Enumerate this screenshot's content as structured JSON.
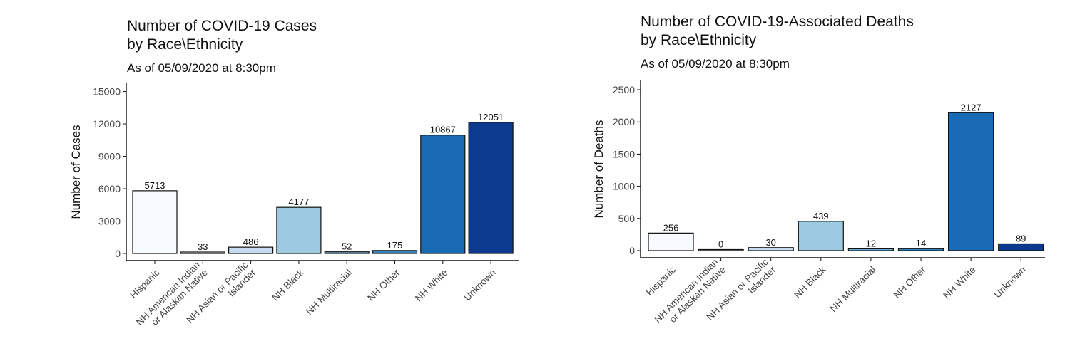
{
  "chart_data": [
    {
      "type": "bar",
      "title_lines": [
        "Number of COVID-19 Cases",
        "by Race\\Ethnicity"
      ],
      "subtitle": "As of 05/09/2020 at 8:30pm",
      "ylabel": "Number of Cases",
      "xlabel": "",
      "categories": [
        "Hispanic",
        "NH American Indian\nor Alaskan Native",
        "NH Asian or Pacific\nIslander",
        "NH Black",
        "NH Multiracial",
        "NH Other",
        "NH White",
        "Unknown"
      ],
      "values": [
        5713,
        33,
        486,
        4177,
        52,
        175,
        10867,
        12051
      ],
      "data_labels": [
        "5713",
        "33",
        "486",
        "4177",
        "52",
        "175",
        "10867",
        "12051"
      ],
      "colors": [
        "#f7fbff",
        "#deebf7",
        "#c6dbef",
        "#9ecae1",
        "#6baed6",
        "#3182bd",
        "#1a6bb6",
        "#0b3a8e"
      ],
      "yticks": [
        0,
        3000,
        6000,
        9000,
        12000,
        15000
      ],
      "ylim": [
        0,
        15500
      ],
      "grid": false,
      "legend": "none"
    },
    {
      "type": "bar",
      "title_lines": [
        "Number of COVID-19-Associated Deaths",
        "by Race\\Ethnicity"
      ],
      "subtitle": "As of 05/09/2020 at 8:30pm",
      "ylabel": "Number of Deaths",
      "xlabel": "",
      "categories": [
        "Hispanic",
        "NH American Indian\nor Alaskan Native",
        "NH Asian or Pacific\nIslander",
        "NH Black",
        "NH Multiracial",
        "NH Other",
        "NH White",
        "Unknown"
      ],
      "values": [
        256,
        0,
        30,
        439,
        12,
        14,
        2127,
        89
      ],
      "data_labels": [
        "256",
        "0",
        "30",
        "439",
        "12",
        "14",
        "2127",
        "89"
      ],
      "colors": [
        "#f7fbff",
        "#deebf7",
        "#c6dbef",
        "#9ecae1",
        "#6baed6",
        "#3182bd",
        "#1a6bb6",
        "#0b3a8e"
      ],
      "yticks": [
        0,
        500,
        1000,
        1500,
        2000,
        2500
      ],
      "ylim": [
        0,
        2600
      ],
      "grid": false,
      "legend": "none"
    }
  ]
}
